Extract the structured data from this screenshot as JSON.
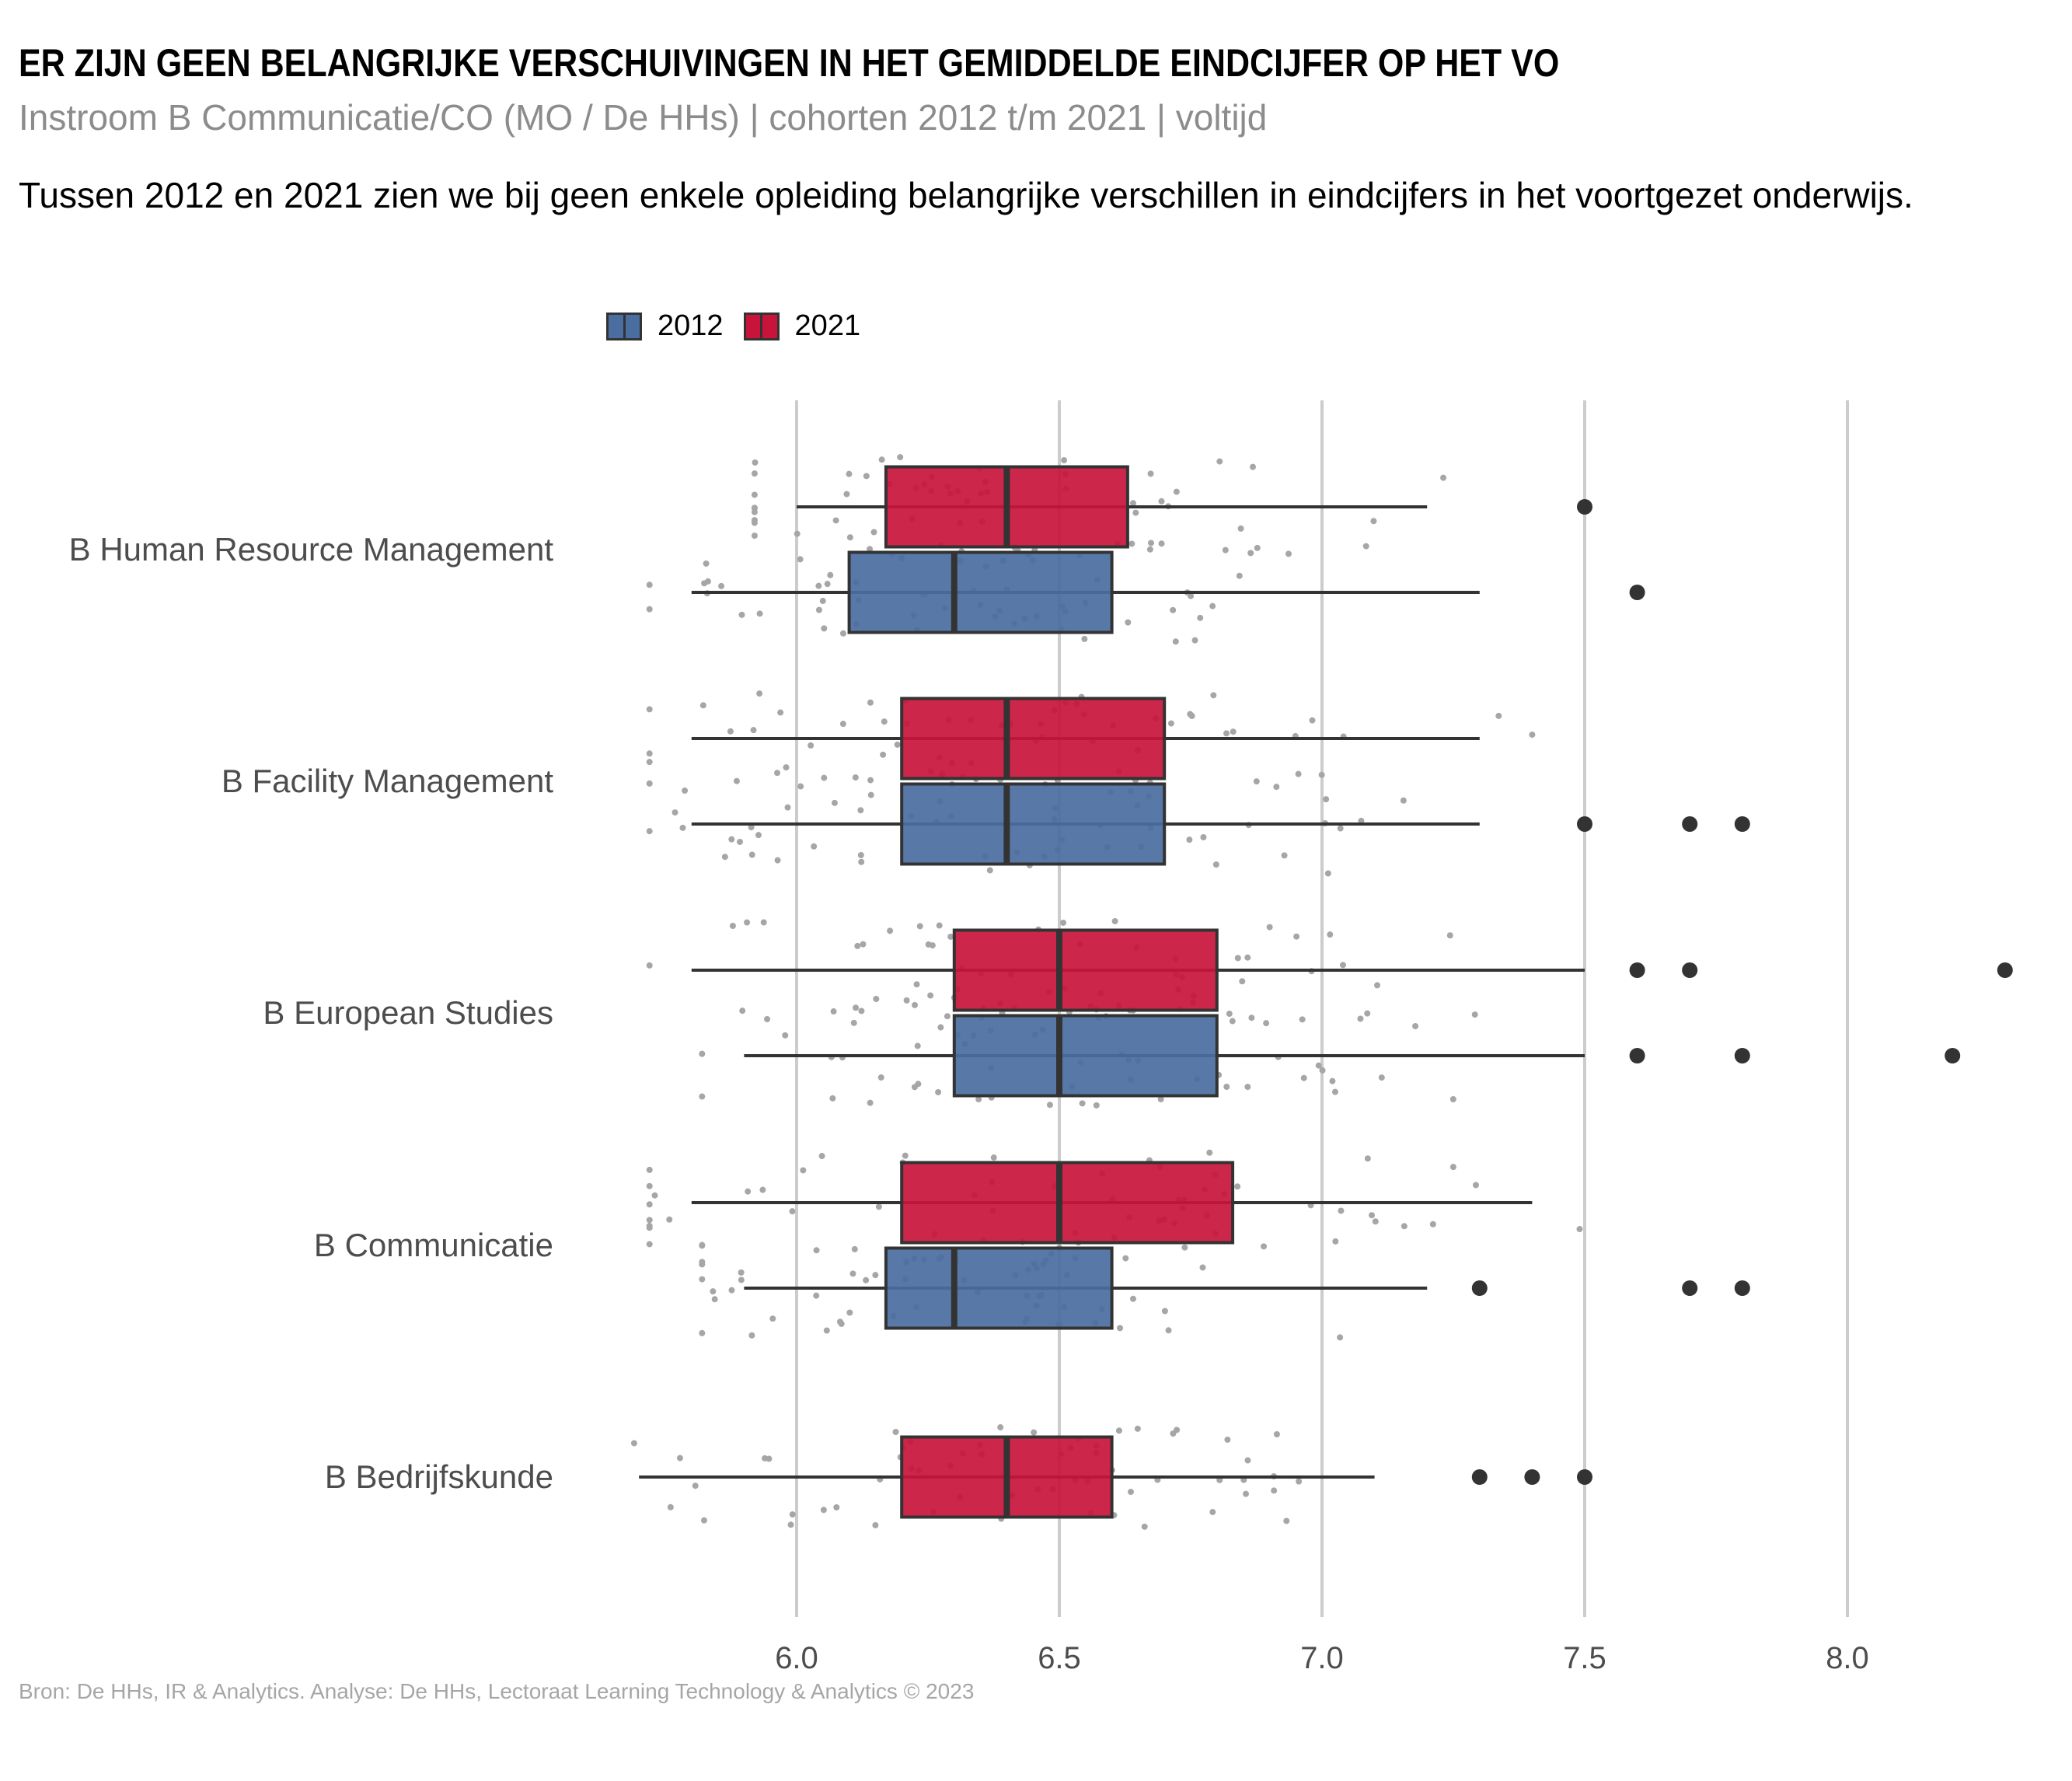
{
  "header": {
    "title": "ER ZIJN GEEN BELANGRIJKE VERSCHUIVINGEN IN HET GEMIDDELDE EINDCIJFER OP HET VO",
    "subtitle": "Instroom B Communicatie/CO (MO / De HHs) | cohorten 2012 t/m 2021 | voltijd",
    "description": "Tussen 2012 en 2021 zien we bij geen enkele opleiding belangrijke verschillen in eindcijfers in het voortgezet onderwijs."
  },
  "legend": {
    "items": [
      {
        "label": "2012",
        "color": "#4a6e9f"
      },
      {
        "label": "2021",
        "color": "#c8133b"
      }
    ]
  },
  "caption": "Bron: De HHs, IR & Analytics. Analyse: De HHs, Lectoraat Learning Technology & Analytics © 2023",
  "chart_data": {
    "type": "boxplot",
    "orientation": "horizontal",
    "title": "ER ZIJN GEEN BELANGRIJKE VERSCHUIVINGEN IN HET GEMIDDELDE EINDCIJFER OP HET VO",
    "xlim": [
      5.65,
      8.35
    ],
    "xticks": [
      6.0,
      6.5,
      7.0,
      7.5,
      8.0
    ],
    "xtick_labels": [
      "6.0",
      "6.5",
      "7.0",
      "7.5",
      "8.0"
    ],
    "grid": "vertical-major",
    "legend_position": "top",
    "categories": [
      "B Human Resource Management",
      "B Facility Management",
      "B European Studies",
      "B Communicatie",
      "B Bedrijfskunde"
    ],
    "series": [
      {
        "name": "2021",
        "color": "#c8133b",
        "boxes": [
          {
            "category": "B Human Resource Management",
            "whisker_low": 6.0,
            "q1": 6.17,
            "median": 6.4,
            "q3": 6.63,
            "whisker_high": 7.2,
            "outliers": [
              7.5
            ]
          },
          {
            "category": "B Facility Management",
            "whisker_low": 5.8,
            "q1": 6.2,
            "median": 6.4,
            "q3": 6.7,
            "whisker_high": 7.3,
            "outliers": []
          },
          {
            "category": "B European Studies",
            "whisker_low": 5.8,
            "q1": 6.3,
            "median": 6.5,
            "q3": 6.8,
            "whisker_high": 7.5,
            "outliers": [
              7.6,
              7.7,
              8.3
            ]
          },
          {
            "category": "B Communicatie",
            "whisker_low": 5.8,
            "q1": 6.2,
            "median": 6.5,
            "q3": 6.83,
            "whisker_high": 7.4,
            "outliers": []
          },
          {
            "category": "B Bedrijfskunde",
            "whisker_low": 5.7,
            "q1": 6.2,
            "median": 6.4,
            "q3": 6.6,
            "whisker_high": 7.1,
            "outliers": [
              7.3,
              7.4,
              7.5
            ]
          }
        ]
      },
      {
        "name": "2012",
        "color": "#4a6e9f",
        "boxes": [
          {
            "category": "B Human Resource Management",
            "whisker_low": 5.8,
            "q1": 6.1,
            "median": 6.3,
            "q3": 6.6,
            "whisker_high": 7.3,
            "outliers": [
              7.6
            ]
          },
          {
            "category": "B Facility Management",
            "whisker_low": 5.8,
            "q1": 6.2,
            "median": 6.4,
            "q3": 6.7,
            "whisker_high": 7.3,
            "outliers": [
              7.5,
              7.7,
              7.8
            ]
          },
          {
            "category": "B European Studies",
            "whisker_low": 5.9,
            "q1": 6.3,
            "median": 6.5,
            "q3": 6.8,
            "whisker_high": 7.5,
            "outliers": [
              7.6,
              7.8,
              8.2
            ]
          },
          {
            "category": "B Communicatie",
            "whisker_low": 5.9,
            "q1": 6.17,
            "median": 6.3,
            "q3": 6.6,
            "whisker_high": 7.2,
            "outliers": [
              7.3,
              7.7,
              7.8
            ]
          }
        ]
      }
    ]
  }
}
